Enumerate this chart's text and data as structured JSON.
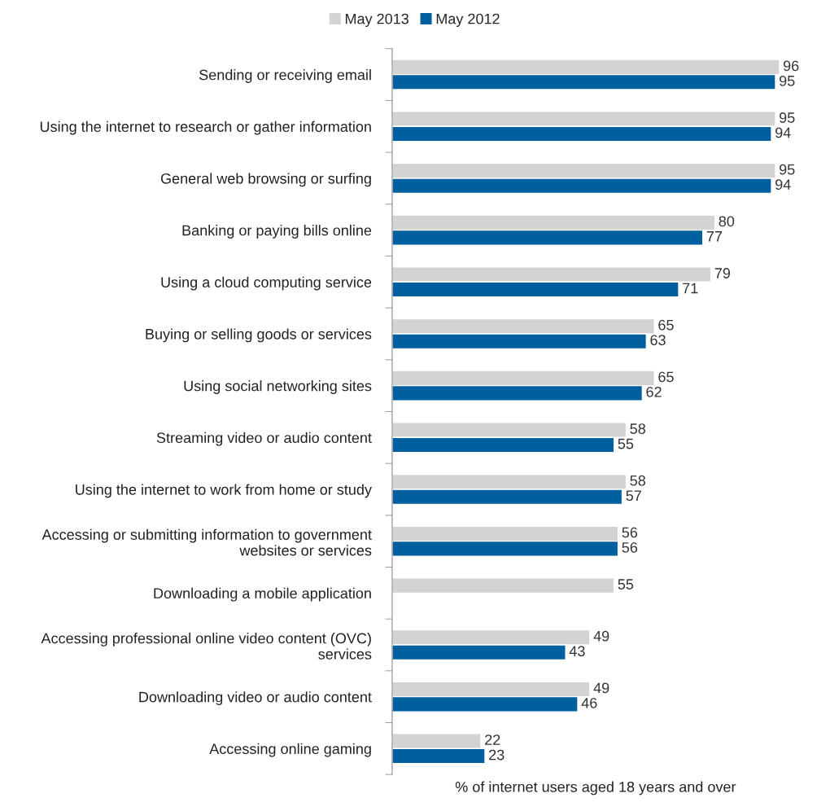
{
  "chart_data": {
    "type": "bar",
    "orientation": "horizontal",
    "xlabel": "% of internet users aged 18 years and over",
    "categories": [
      "Sending or receiving email",
      "Using the internet to research or gather information",
      "General web browsing or surfing",
      "Banking or paying bills online",
      "Using a cloud computing service",
      "Buying or selling goods or services",
      "Using social networking sites",
      "Streaming video or audio content",
      "Using the internet to work from home or study",
      "Accessing or submitting information to government\nwebsites or services",
      "Downloading a mobile application",
      "Accessing professional online video content (OVC)\nservices",
      "Downloading video or audio content",
      "Accessing online gaming"
    ],
    "series": [
      {
        "name": "May 2013",
        "color": "#d2d3d5",
        "values": [
          96,
          95,
          95,
          80,
          79,
          65,
          65,
          58,
          58,
          56,
          55,
          49,
          49,
          22
        ]
      },
      {
        "name": "May 2012",
        "color": "#005f9e",
        "values": [
          95,
          94,
          94,
          77,
          71,
          63,
          62,
          55,
          57,
          56,
          null,
          43,
          46,
          23
        ]
      }
    ],
    "data_labels": true,
    "legend": "top",
    "grid": false,
    "tick_labels": "y"
  }
}
